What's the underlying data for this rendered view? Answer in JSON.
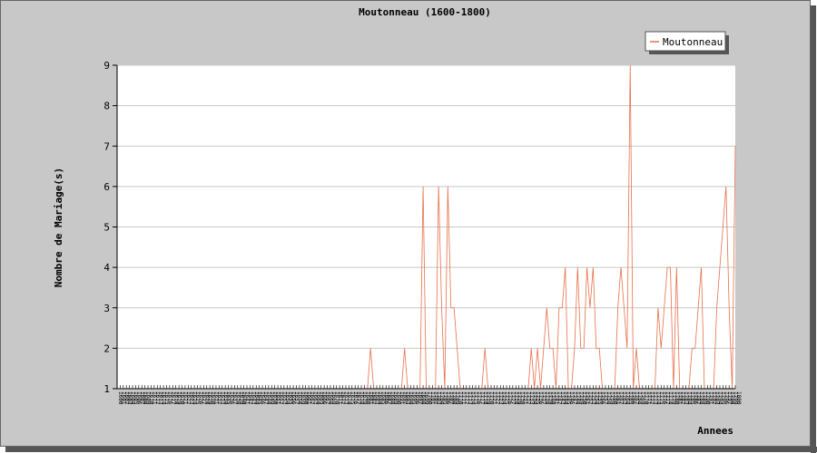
{
  "chart_data": {
    "type": "line",
    "title": "Moutonneau (1600-1800)",
    "xlabel": "Annees",
    "ylabel": "Nombre de Mariage(s)",
    "ylim": [
      1,
      9
    ],
    "yticks": [
      1,
      2,
      3,
      4,
      5,
      6,
      7,
      8,
      9
    ],
    "xlim": [
      1600,
      1800
    ],
    "grid": true,
    "legend_position": "top-right",
    "series": [
      {
        "name": "Moutonneau",
        "color": "#e8704a",
        "points": [
          [
            1600,
            1
          ],
          [
            1681,
            1
          ],
          [
            1682,
            2
          ],
          [
            1683,
            1
          ],
          [
            1692,
            1
          ],
          [
            1693,
            2
          ],
          [
            1694,
            1
          ],
          [
            1698,
            1
          ],
          [
            1699,
            6
          ],
          [
            1700,
            1
          ],
          [
            1703,
            1
          ],
          [
            1704,
            6
          ],
          [
            1705,
            3
          ],
          [
            1706,
            1
          ],
          [
            1707,
            6
          ],
          [
            1708,
            3
          ],
          [
            1709,
            3
          ],
          [
            1710,
            2
          ],
          [
            1711,
            1
          ],
          [
            1718,
            1
          ],
          [
            1719,
            2
          ],
          [
            1720,
            1
          ],
          [
            1733,
            1
          ],
          [
            1734,
            2
          ],
          [
            1735,
            1
          ],
          [
            1736,
            2
          ],
          [
            1737,
            1
          ],
          [
            1738,
            2
          ],
          [
            1739,
            3
          ],
          [
            1740,
            2
          ],
          [
            1741,
            2
          ],
          [
            1742,
            1
          ],
          [
            1743,
            3
          ],
          [
            1744,
            3
          ],
          [
            1745,
            4
          ],
          [
            1746,
            1
          ],
          [
            1747,
            1
          ],
          [
            1748,
            2
          ],
          [
            1749,
            4
          ],
          [
            1750,
            2
          ],
          [
            1751,
            2
          ],
          [
            1752,
            4
          ],
          [
            1753,
            3
          ],
          [
            1754,
            4
          ],
          [
            1755,
            2
          ],
          [
            1756,
            2
          ],
          [
            1757,
            1
          ],
          [
            1761,
            1
          ],
          [
            1762,
            3
          ],
          [
            1763,
            4
          ],
          [
            1764,
            3
          ],
          [
            1765,
            2
          ],
          [
            1766,
            9
          ],
          [
            1767,
            1
          ],
          [
            1768,
            2
          ],
          [
            1769,
            1
          ],
          [
            1774,
            1
          ],
          [
            1775,
            3
          ],
          [
            1776,
            2
          ],
          [
            1777,
            3
          ],
          [
            1778,
            4
          ],
          [
            1779,
            4
          ],
          [
            1780,
            1
          ],
          [
            1781,
            4
          ],
          [
            1782,
            1
          ],
          [
            1785,
            1
          ],
          [
            1786,
            2
          ],
          [
            1787,
            2
          ],
          [
            1788,
            3
          ],
          [
            1789,
            4
          ],
          [
            1790,
            1
          ],
          [
            1793,
            1
          ],
          [
            1794,
            3
          ],
          [
            1795,
            4
          ],
          [
            1796,
            5
          ],
          [
            1797,
            6
          ],
          [
            1798,
            3
          ],
          [
            1799,
            1
          ],
          [
            1800,
            7
          ]
        ]
      }
    ]
  }
}
